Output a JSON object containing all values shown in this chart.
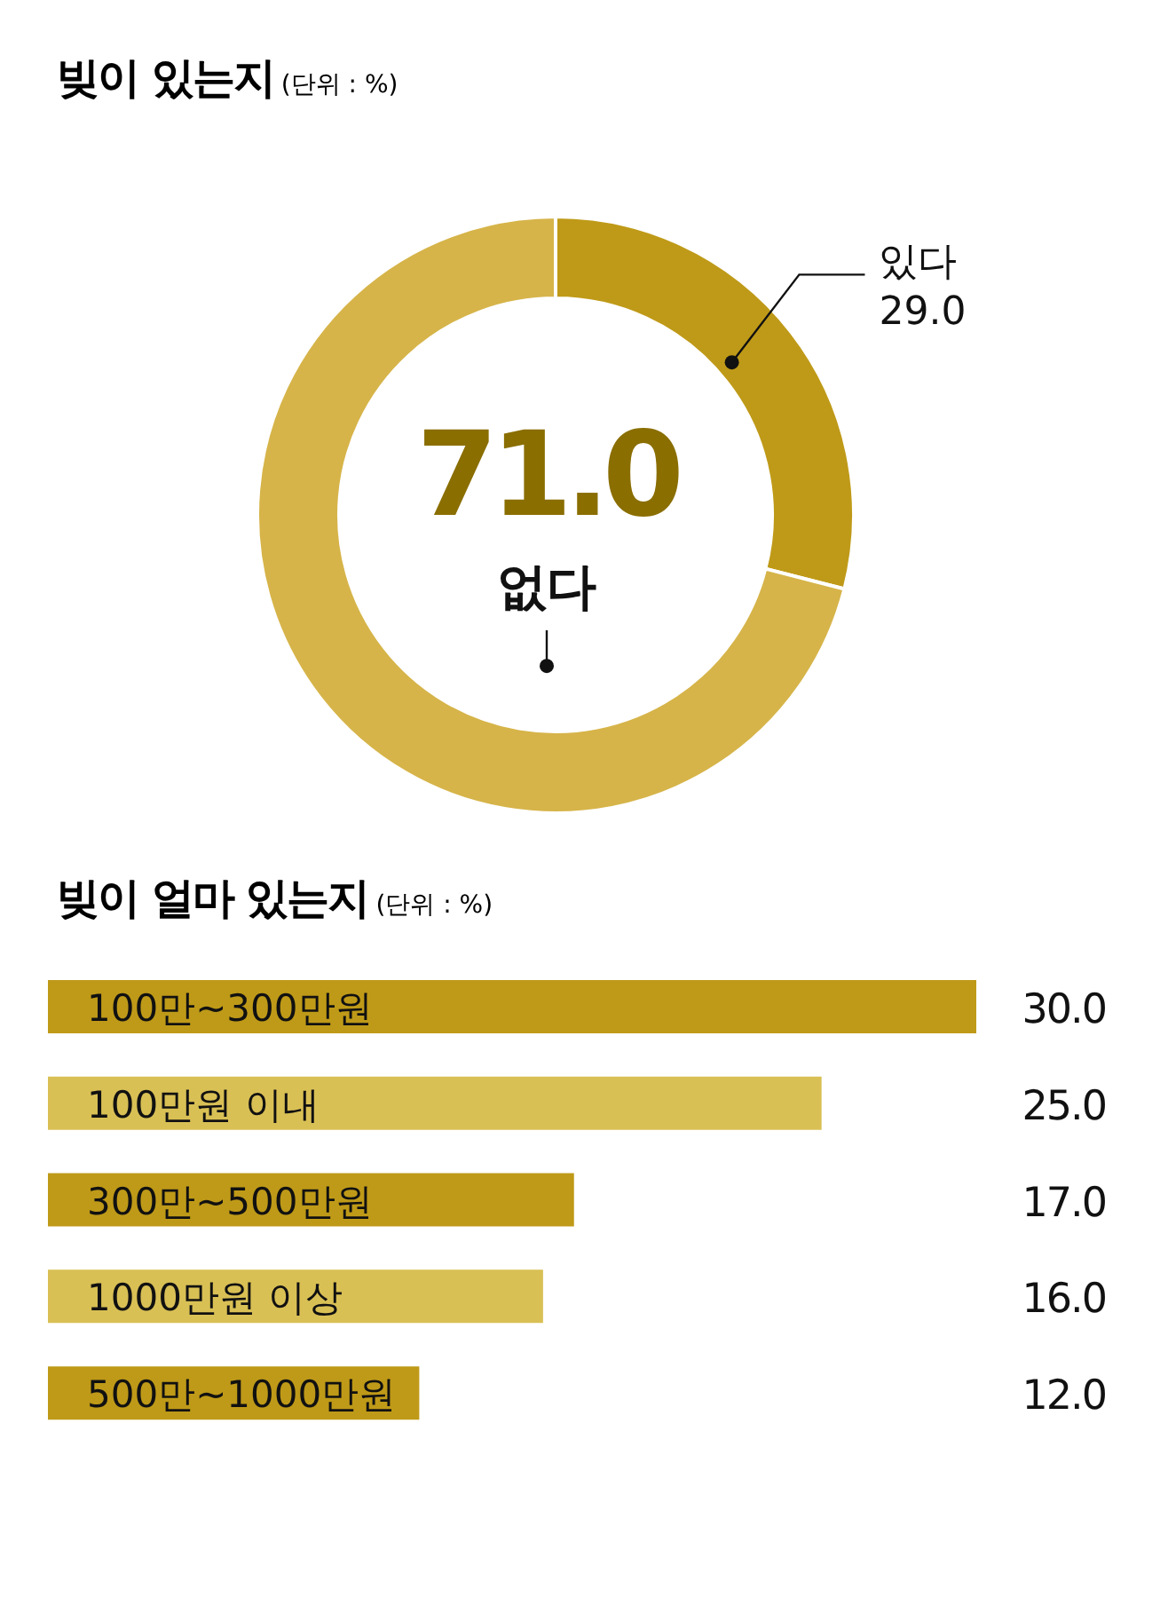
{
  "chart_data": [
    {
      "type": "donut",
      "title": "빚이 있는지",
      "subtitle": "(단위 : %)",
      "categories": [
        "있다",
        "없다"
      ],
      "values": [
        29.0,
        71.0
      ],
      "colors": [
        "#bf9a18",
        "#d6b449"
      ],
      "value_labels": [
        "29.0",
        "71.0"
      ]
    },
    {
      "type": "bar",
      "orientation": "horizontal",
      "title": "빚이 얼마 있는지",
      "subtitle": "(단위 : %)",
      "categories": [
        "100만~300만원",
        "100만원 이내",
        "300만~500만원",
        "1000만원 이상",
        "500만~1000만원"
      ],
      "values": [
        30.0,
        25.0,
        17.0,
        16.0,
        12.0
      ],
      "colors": [
        "#bf9a18",
        "#d9c055",
        "#bf9a18",
        "#d9c055",
        "#bf9a18"
      ],
      "value_labels": [
        "30.0",
        "25.0",
        "17.0",
        "16.0",
        "12.0"
      ]
    }
  ]
}
